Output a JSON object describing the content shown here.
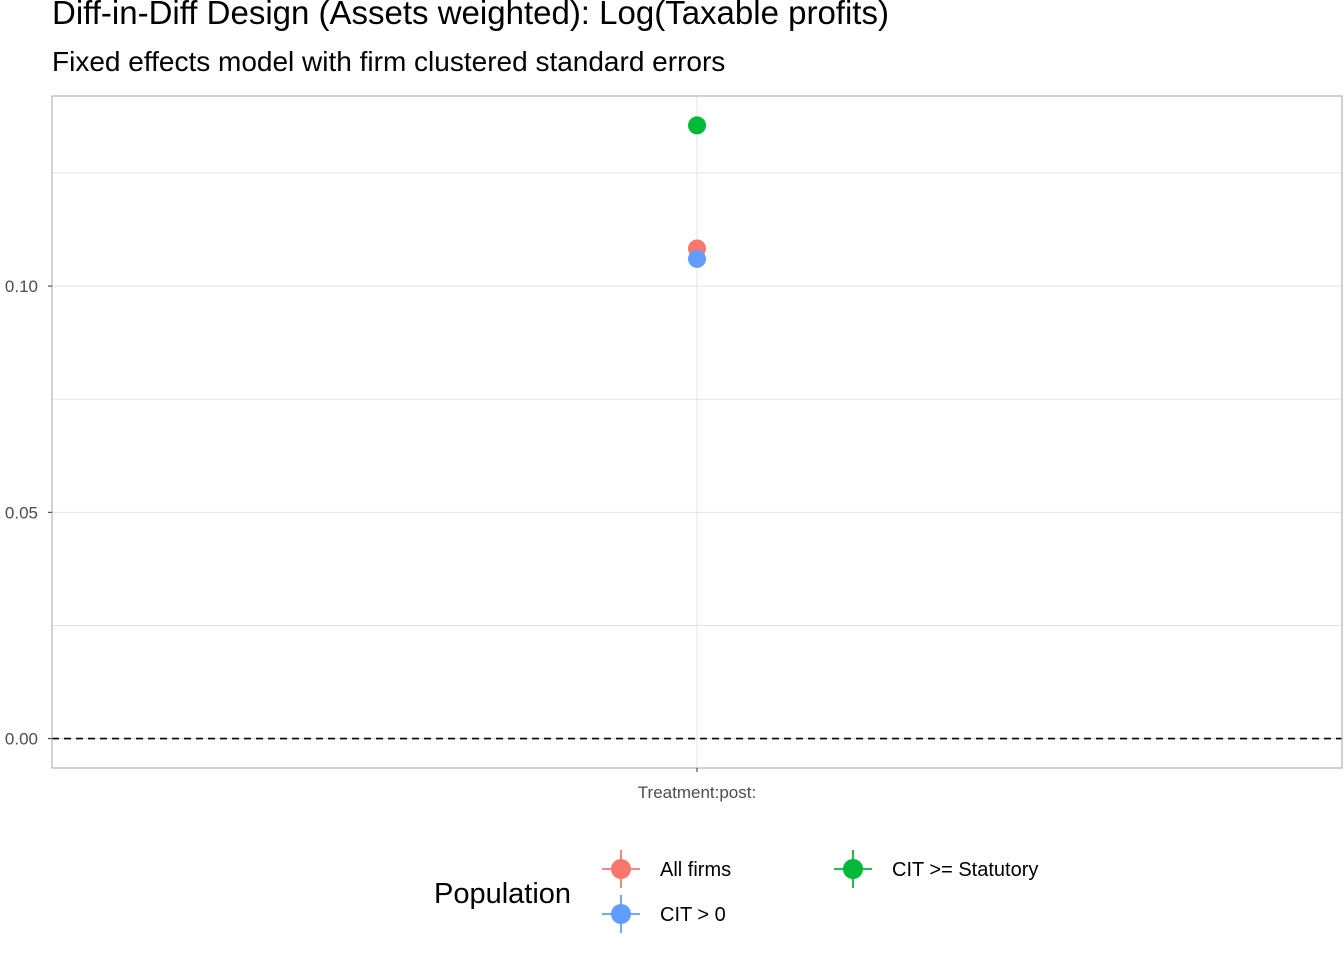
{
  "chart_data": {
    "type": "scatter",
    "title": "Diff-in-Diff Design (Assets weighted): Log(Taxable profits)",
    "subtitle": "Fixed effects model with firm clustered standard errors",
    "xlabel": "",
    "ylabel": "",
    "categories": [
      "Treatment:post:"
    ],
    "ylim": [
      -0.0065,
      0.142
    ],
    "y_ticks": [
      0.0,
      0.05,
      0.1
    ],
    "y_tick_labels": [
      "0.00",
      "0.05",
      "0.10"
    ],
    "grid": true,
    "reference_line": {
      "y": 0,
      "style": "dashed"
    },
    "legend": {
      "title": "Population",
      "placement": "bottom"
    },
    "series": [
      {
        "name": "All firms",
        "color": "#F8766D",
        "values": [
          0.1083
        ]
      },
      {
        "name": "CIT >= Statutory",
        "color": "#00BA38",
        "values": [
          0.1355
        ]
      },
      {
        "name": "CIT > 0",
        "color": "#619CFF",
        "values": [
          0.106
        ]
      }
    ]
  }
}
